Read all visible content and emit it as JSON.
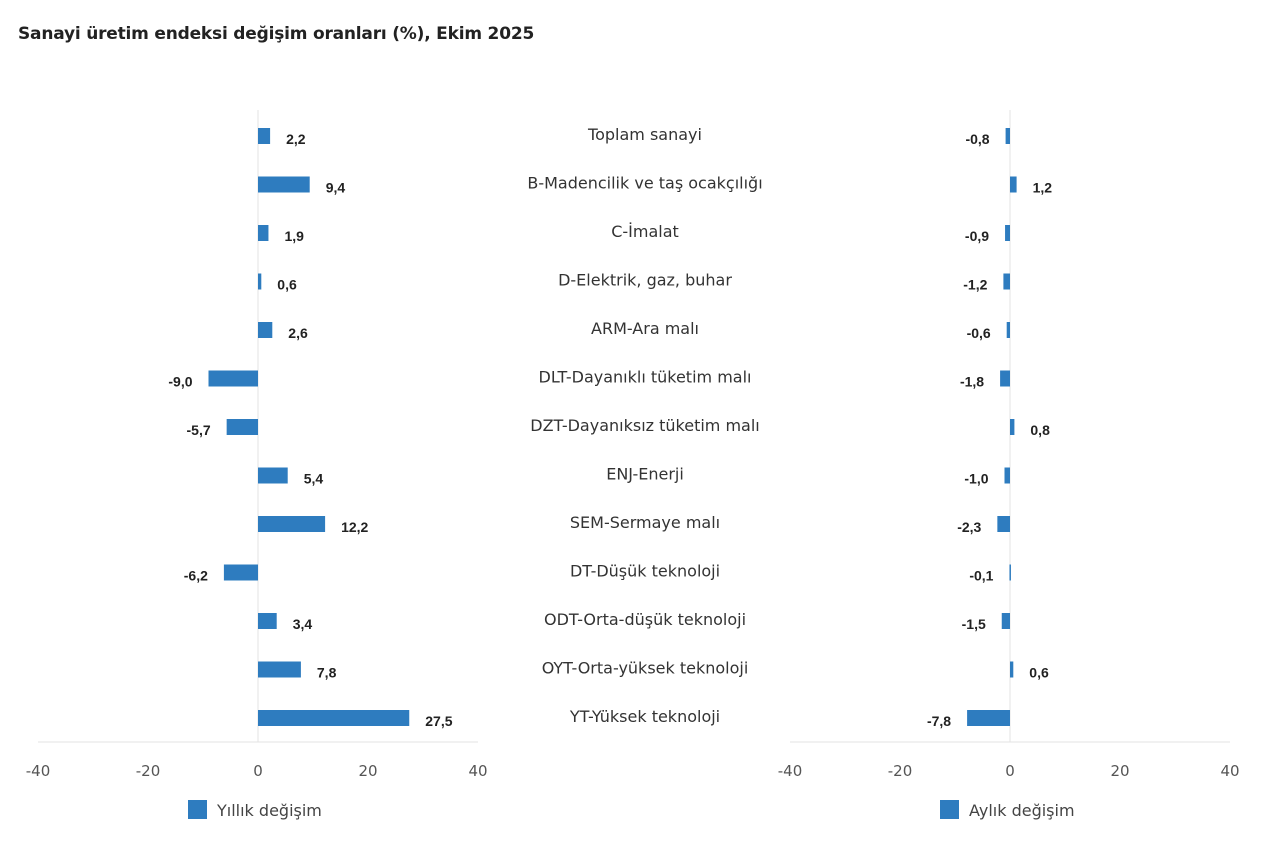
{
  "chart_data": [
    {
      "type": "bar",
      "orientation": "horizontal",
      "title": "Sanayi üretim endeksi değişim oranları (%), Ekim 2025",
      "categories": [
        "Toplam sanayi",
        "B-Madencilik ve taş ocakçılığı",
        "C-İmalat",
        "D-Elektrik, gaz, buhar",
        "ARM-Ara malı",
        "DLT-Dayanıklı tüketim malı",
        "DZT-Dayanıksız tüketim malı",
        "ENJ-Enerji",
        "SEM-Sermaye malı",
        "DT-Düşük teknoloji",
        "ODT-Orta-düşük teknoloji",
        "OYT-Orta-yüksek teknoloji",
        "YT-Yüksek teknoloji"
      ],
      "series": [
        {
          "name": "Yıllık değişim",
          "values": [
            2.2,
            9.4,
            1.9,
            0.6,
            2.6,
            -9.0,
            -5.7,
            5.4,
            12.2,
            -6.2,
            3.4,
            7.8,
            27.5
          ],
          "labels": [
            "2,2",
            "9,4",
            "1,9",
            "0,6",
            "2,6",
            "-9,0",
            "-5,7",
            "5,4",
            "12,2",
            "-6,2",
            "3,4",
            "7,8",
            "27,5"
          ]
        }
      ],
      "xlim": [
        -40,
        40
      ],
      "xticks": [
        "-40",
        "-20",
        "0",
        "20",
        "40"
      ],
      "legend": "bottom",
      "color": "#2e7cbf"
    },
    {
      "type": "bar",
      "orientation": "horizontal",
      "series": [
        {
          "name": "Aylık değişim",
          "values": [
            -0.8,
            1.2,
            -0.9,
            -1.2,
            -0.6,
            -1.8,
            0.8,
            -1.0,
            -2.3,
            -0.1,
            -1.5,
            0.6,
            -7.8
          ],
          "labels": [
            "-0,8",
            "1,2",
            "-0,9",
            "-1,2",
            "-0,6",
            "-1,8",
            "0,8",
            "-1,0",
            "-2,3",
            "-0,1",
            "-1,5",
            "0,6",
            "-7,8"
          ]
        }
      ],
      "xlim": [
        -40,
        40
      ],
      "xticks": [
        "-40",
        "-20",
        "0",
        "20",
        "40"
      ],
      "legend": "bottom",
      "color": "#2e7cbf"
    }
  ]
}
